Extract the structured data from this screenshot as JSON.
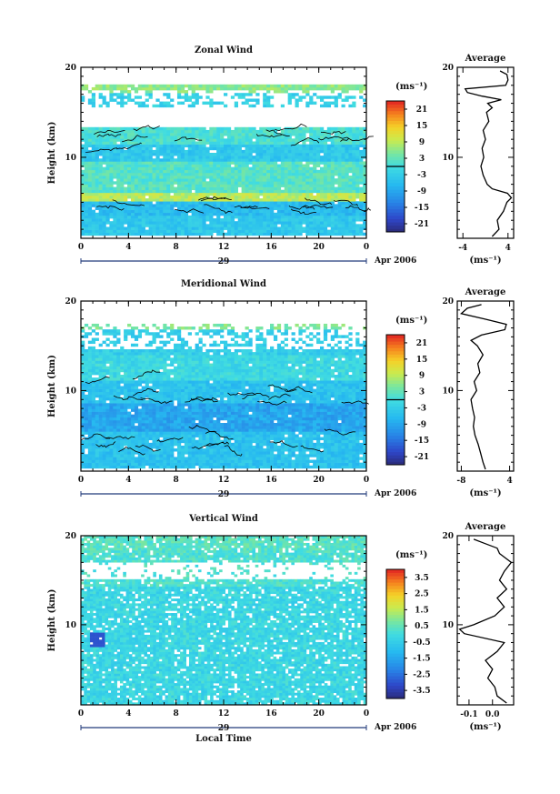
{
  "chart_data": [
    {
      "type": "heatmap",
      "title": "Zonal Wind",
      "ylabel": "Height (km)",
      "xlabel": "",
      "x_ticks": [
        "0",
        "4",
        "8",
        "12",
        "16",
        "20",
        "0"
      ],
      "y_ticks": [
        "10",
        "20"
      ],
      "date_day": "29",
      "date_month": "Apr 2006",
      "xlim": [
        0,
        24
      ],
      "ylim": [
        1,
        20
      ],
      "colorbar": {
        "unit": "(ms⁻¹)",
        "ticks": [
          "21",
          "15",
          "9",
          "3",
          "-3",
          "-9",
          "-15",
          "-21"
        ],
        "range": [
          -24,
          24
        ],
        "zero_line": true
      },
      "field": {
        "kind": "zonal",
        "layers": [
          {
            "z": [
              17.2,
              18.2
            ],
            "value": 6
          },
          {
            "z": [
              15.6,
              17.2
            ],
            "value": -2
          },
          {
            "z": [
              11.5,
              13.5
            ],
            "value": 1
          },
          {
            "z": [
              9.5,
              11.5
            ],
            "value": -4
          },
          {
            "z": [
              6.2,
              9.5
            ],
            "value": 2
          },
          {
            "z": [
              5.2,
              6.2
            ],
            "value": 9
          },
          {
            "z": [
              3.5,
              5.2
            ],
            "value": -6
          },
          {
            "z": [
              1.2,
              3.5
            ],
            "value": -4
          }
        ],
        "gap_km": [
          [
            13.5,
            15.6
          ],
          [
            18.4,
            20
          ]
        ]
      },
      "profile": {
        "title": "Average",
        "xlabel": "(ms⁻¹)",
        "x_ticks": [
          "-4",
          "4"
        ],
        "xlim": [
          -5,
          5
        ],
        "z": [
          1.2,
          2,
          3,
          4,
          5,
          5.5,
          6,
          6.5,
          7,
          8,
          9,
          10,
          11,
          12,
          13,
          14,
          15,
          15.5,
          16,
          16.4,
          16.8,
          17.2,
          17.6,
          18,
          18.6,
          19.2,
          19.6
        ],
        "u": [
          1.2,
          2.4,
          2.1,
          3.2,
          3.8,
          4.6,
          3.9,
          1.2,
          0.3,
          -0.4,
          -0.8,
          -0.3,
          -0.6,
          0.0,
          -0.4,
          0.6,
          0.2,
          1.2,
          0.4,
          2.8,
          -0.6,
          -3.2,
          -3.6,
          3.6,
          4.0,
          3.8,
          2.6
        ]
      }
    },
    {
      "type": "heatmap",
      "title": "Meridional Wind",
      "ylabel": "Height (km)",
      "xlabel": "",
      "x_ticks": [
        "0",
        "4",
        "8",
        "12",
        "16",
        "20",
        "0"
      ],
      "y_ticks": [
        "10",
        "20"
      ],
      "date_day": "29",
      "date_month": "Apr 2006",
      "xlim": [
        0,
        24
      ],
      "ylim": [
        1,
        20
      ],
      "colorbar": {
        "unit": "(ms⁻¹)",
        "ticks": [
          "21",
          "15",
          "9",
          "3",
          "-3",
          "-9",
          "-15",
          "-21"
        ],
        "range": [
          -24,
          24
        ],
        "zero_line": true
      },
      "field": {
        "kind": "meridional",
        "layers": [
          {
            "z": [
              16.8,
              17.6
            ],
            "value": 5
          },
          {
            "z": [
              14.0,
              16.8
            ],
            "value": -3
          },
          {
            "z": [
              11.0,
              14.0
            ],
            "value": -1
          },
          {
            "z": [
              8.5,
              11.0
            ],
            "value": -5
          },
          {
            "z": [
              5.5,
              8.5
            ],
            "value": -9
          },
          {
            "z": [
              1.2,
              5.5
            ],
            "value": -5
          }
        ],
        "gap_km": [
          [
            17.8,
            20
          ]
        ]
      },
      "profile": {
        "title": "Average",
        "xlabel": "(ms⁻¹)",
        "x_ticks": [
          "-8",
          "4"
        ],
        "xlim": [
          -9,
          5
        ],
        "z": [
          1.2,
          2,
          3,
          4,
          5,
          6,
          7,
          8,
          9,
          10,
          11,
          12,
          13,
          14,
          15,
          15.6,
          16.2,
          16.8,
          17.4,
          18,
          18.6,
          19.2,
          19.6
        ],
        "u": [
          -2.0,
          -2.6,
          -3.2,
          -3.8,
          -4.6,
          -5.0,
          -4.7,
          -5.2,
          -5.6,
          -4.2,
          -4.8,
          -3.4,
          -3.9,
          -2.6,
          -4.0,
          -5.6,
          -3.0,
          2.8,
          3.2,
          -2.2,
          -8.0,
          -6.5,
          -3.0
        ]
      }
    },
    {
      "type": "heatmap",
      "title": "Vertical Wind",
      "ylabel": "Height (km)",
      "xlabel": "Local Time",
      "x_ticks": [
        "0",
        "4",
        "8",
        "12",
        "16",
        "20",
        "0"
      ],
      "y_ticks": [
        "10",
        "20"
      ],
      "date_day": "29",
      "date_month": "Apr 2006",
      "xlim": [
        0,
        24
      ],
      "ylim": [
        1,
        20
      ],
      "colorbar": {
        "unit": "(ms⁻¹)",
        "ticks": [
          "3.5",
          "2.5",
          "1.5",
          "0.5",
          "-0.5",
          "-1.5",
          "-2.5",
          "-3.5"
        ],
        "range": [
          -4,
          4
        ],
        "zero_line": false
      },
      "field": {
        "kind": "vertical",
        "layers": [
          {
            "z": [
              18.4,
              20
            ],
            "value": 0.4
          },
          {
            "z": [
              14.2,
              18.4
            ],
            "value": 0.2
          },
          {
            "z": [
              1.0,
              14.2
            ],
            "value": -0.2
          }
        ],
        "gap_km": [
          [
            15.0,
            17.0
          ]
        ]
      },
      "profile": {
        "title": "Average",
        "xlabel": "(ms⁻¹)",
        "x_ticks": [
          "-0.1",
          "0.0"
        ],
        "xlim": [
          -0.15,
          0.09
        ],
        "z": [
          1.2,
          2,
          3,
          4,
          5,
          6,
          7,
          8,
          9,
          9.5,
          10,
          11,
          12,
          13,
          14,
          15,
          16,
          17,
          18,
          18.6,
          19.2,
          19.6
        ],
        "u": [
          0.06,
          0.02,
          0.01,
          -0.02,
          0.0,
          -0.03,
          0.02,
          0.05,
          -0.12,
          -0.14,
          -0.08,
          0.01,
          0.05,
          0.02,
          0.06,
          0.03,
          0.05,
          0.08,
          0.03,
          0.02,
          -0.04,
          -0.08
        ]
      }
    }
  ]
}
